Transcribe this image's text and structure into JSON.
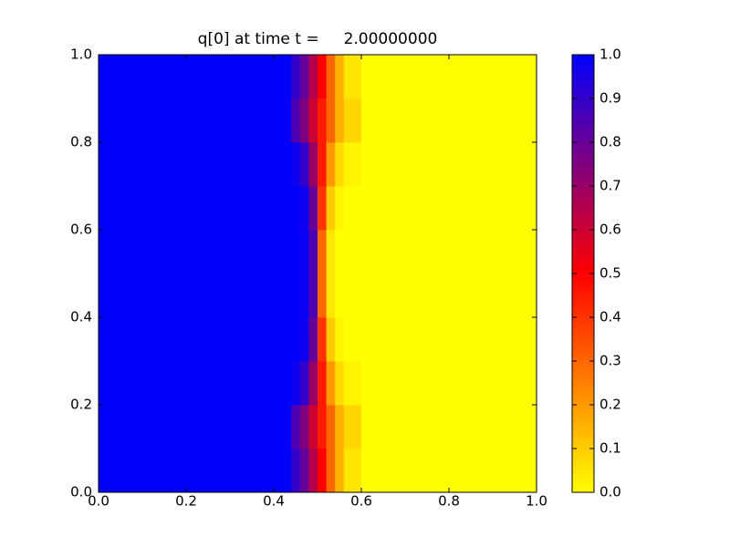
{
  "chart_data": {
    "type": "heatmap",
    "title": "q[0] at time t =     2.00000000",
    "x_bins": [
      0,
      0.44,
      0.46,
      0.48,
      0.5,
      0.52,
      0.54,
      0.56,
      0.6,
      1.0
    ],
    "y_bins": [
      0,
      0.1,
      0.2,
      0.3,
      0.4,
      0.5,
      0.6,
      0.7,
      0.8,
      0.9,
      1.0
    ],
    "values": [
      [
        1,
        0.9,
        0.8,
        0.65,
        0.5,
        0.3,
        0.15,
        0.05,
        0
      ],
      [
        1,
        0.85,
        0.75,
        0.6,
        0.45,
        0.3,
        0.15,
        0.08,
        0
      ],
      [
        1,
        0.97,
        0.9,
        0.7,
        0.45,
        0.2,
        0.07,
        0.02,
        0
      ],
      [
        1,
        1,
        0.97,
        0.8,
        0.4,
        0.1,
        0.02,
        0,
        0
      ],
      [
        1,
        1,
        0.98,
        0.85,
        0.3,
        0.05,
        0,
        0,
        0
      ],
      [
        1,
        1,
        0.98,
        0.85,
        0.3,
        0.05,
        0,
        0,
        0
      ],
      [
        1,
        1,
        0.97,
        0.8,
        0.4,
        0.1,
        0.02,
        0,
        0
      ],
      [
        1,
        0.97,
        0.9,
        0.7,
        0.45,
        0.2,
        0.07,
        0.02,
        0
      ],
      [
        1,
        0.85,
        0.75,
        0.6,
        0.45,
        0.3,
        0.15,
        0.08,
        0
      ],
      [
        1,
        0.9,
        0.8,
        0.65,
        0.5,
        0.3,
        0.15,
        0.05,
        0
      ]
    ],
    "colormap": [
      "#ffff00",
      "#ff0000",
      "#0000ff"
    ],
    "clim": [
      0,
      1
    ],
    "xlim": [
      0,
      1
    ],
    "ylim": [
      0,
      1
    ],
    "xticks": [
      {
        "value": 0,
        "label": "0.0"
      },
      {
        "value": 0.2,
        "label": "0.2"
      },
      {
        "value": 0.4,
        "label": "0.4"
      },
      {
        "value": 0.6,
        "label": "0.6"
      },
      {
        "value": 0.8,
        "label": "0.8"
      },
      {
        "value": 1,
        "label": "1.0"
      }
    ],
    "yticks": [
      {
        "value": 0,
        "label": "0.0"
      },
      {
        "value": 0.2,
        "label": "0.2"
      },
      {
        "value": 0.4,
        "label": "0.4"
      },
      {
        "value": 0.6,
        "label": "0.6"
      },
      {
        "value": 0.8,
        "label": "0.8"
      },
      {
        "value": 1,
        "label": "1.0"
      }
    ],
    "cticks": [
      {
        "value": 0,
        "label": "0.0"
      },
      {
        "value": 0.1,
        "label": "0.1"
      },
      {
        "value": 0.2,
        "label": "0.2"
      },
      {
        "value": 0.3,
        "label": "0.3"
      },
      {
        "value": 0.4,
        "label": "0.4"
      },
      {
        "value": 0.5,
        "label": "0.5"
      },
      {
        "value": 0.6,
        "label": "0.6"
      },
      {
        "value": 0.7,
        "label": "0.7"
      },
      {
        "value": 0.8,
        "label": "0.8"
      },
      {
        "value": 0.9,
        "label": "0.9"
      },
      {
        "value": 1,
        "label": "1.0"
      }
    ]
  }
}
